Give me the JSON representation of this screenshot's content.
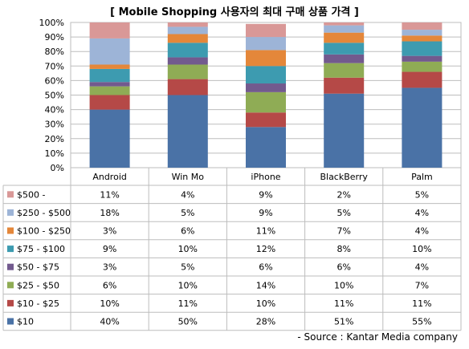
{
  "chart_data": {
    "type": "bar",
    "stacked": true,
    "title": "[ Mobile Shopping 사용자의 최대 구매 상품 가격 ]",
    "categories": [
      "Android",
      "Win Mo",
      "iPhone",
      "BlackBerry",
      "Palm"
    ],
    "ylim": [
      0,
      100
    ],
    "y_ticks": [
      "0%",
      "10%",
      "20%",
      "30%",
      "40%",
      "50%",
      "60%",
      "70%",
      "80%",
      "90%",
      "100%"
    ],
    "grid": true,
    "legend": "table-left",
    "series": [
      {
        "name": "$10",
        "color": "#4a72a6",
        "values": [
          40,
          50,
          28,
          51,
          55
        ],
        "labels": [
          "40%",
          "50%",
          "28%",
          "51%",
          "55%"
        ]
      },
      {
        "name": "$10 - $25",
        "color": "#b54947",
        "values": [
          10,
          11,
          10,
          11,
          11
        ],
        "labels": [
          "10%",
          "11%",
          "10%",
          "11%",
          "11%"
        ]
      },
      {
        "name": "$25 - $50",
        "color": "#8fac55",
        "values": [
          6,
          10,
          14,
          10,
          7
        ],
        "labels": [
          "6%",
          "10%",
          "14%",
          "10%",
          "7%"
        ]
      },
      {
        "name": "$50 - $75",
        "color": "#725a8e",
        "values": [
          3,
          5,
          6,
          6,
          4
        ],
        "labels": [
          "3%",
          "5%",
          "6%",
          "6%",
          "4%"
        ]
      },
      {
        "name": "$75 - $100",
        "color": "#3d9bb0",
        "values": [
          9,
          10,
          12,
          8,
          10
        ],
        "labels": [
          "9%",
          "10%",
          "12%",
          "8%",
          "10%"
        ]
      },
      {
        "name": "$100 - $250",
        "color": "#e4873a",
        "values": [
          3,
          6,
          11,
          7,
          4
        ],
        "labels": [
          "3%",
          "6%",
          "11%",
          "7%",
          "4%"
        ]
      },
      {
        "name": "$250 - $500",
        "color": "#9db4d7",
        "values": [
          18,
          5,
          9,
          5,
          4
        ],
        "labels": [
          "18%",
          "5%",
          "9%",
          "5%",
          "4%"
        ]
      },
      {
        "name": "$500 -",
        "color": "#d99897",
        "values": [
          11,
          4,
          9,
          2,
          5
        ],
        "labels": [
          "11%",
          "4%",
          "9%",
          "2%",
          "5%"
        ]
      }
    ]
  },
  "source_note": "- Source : Kantar Media company"
}
